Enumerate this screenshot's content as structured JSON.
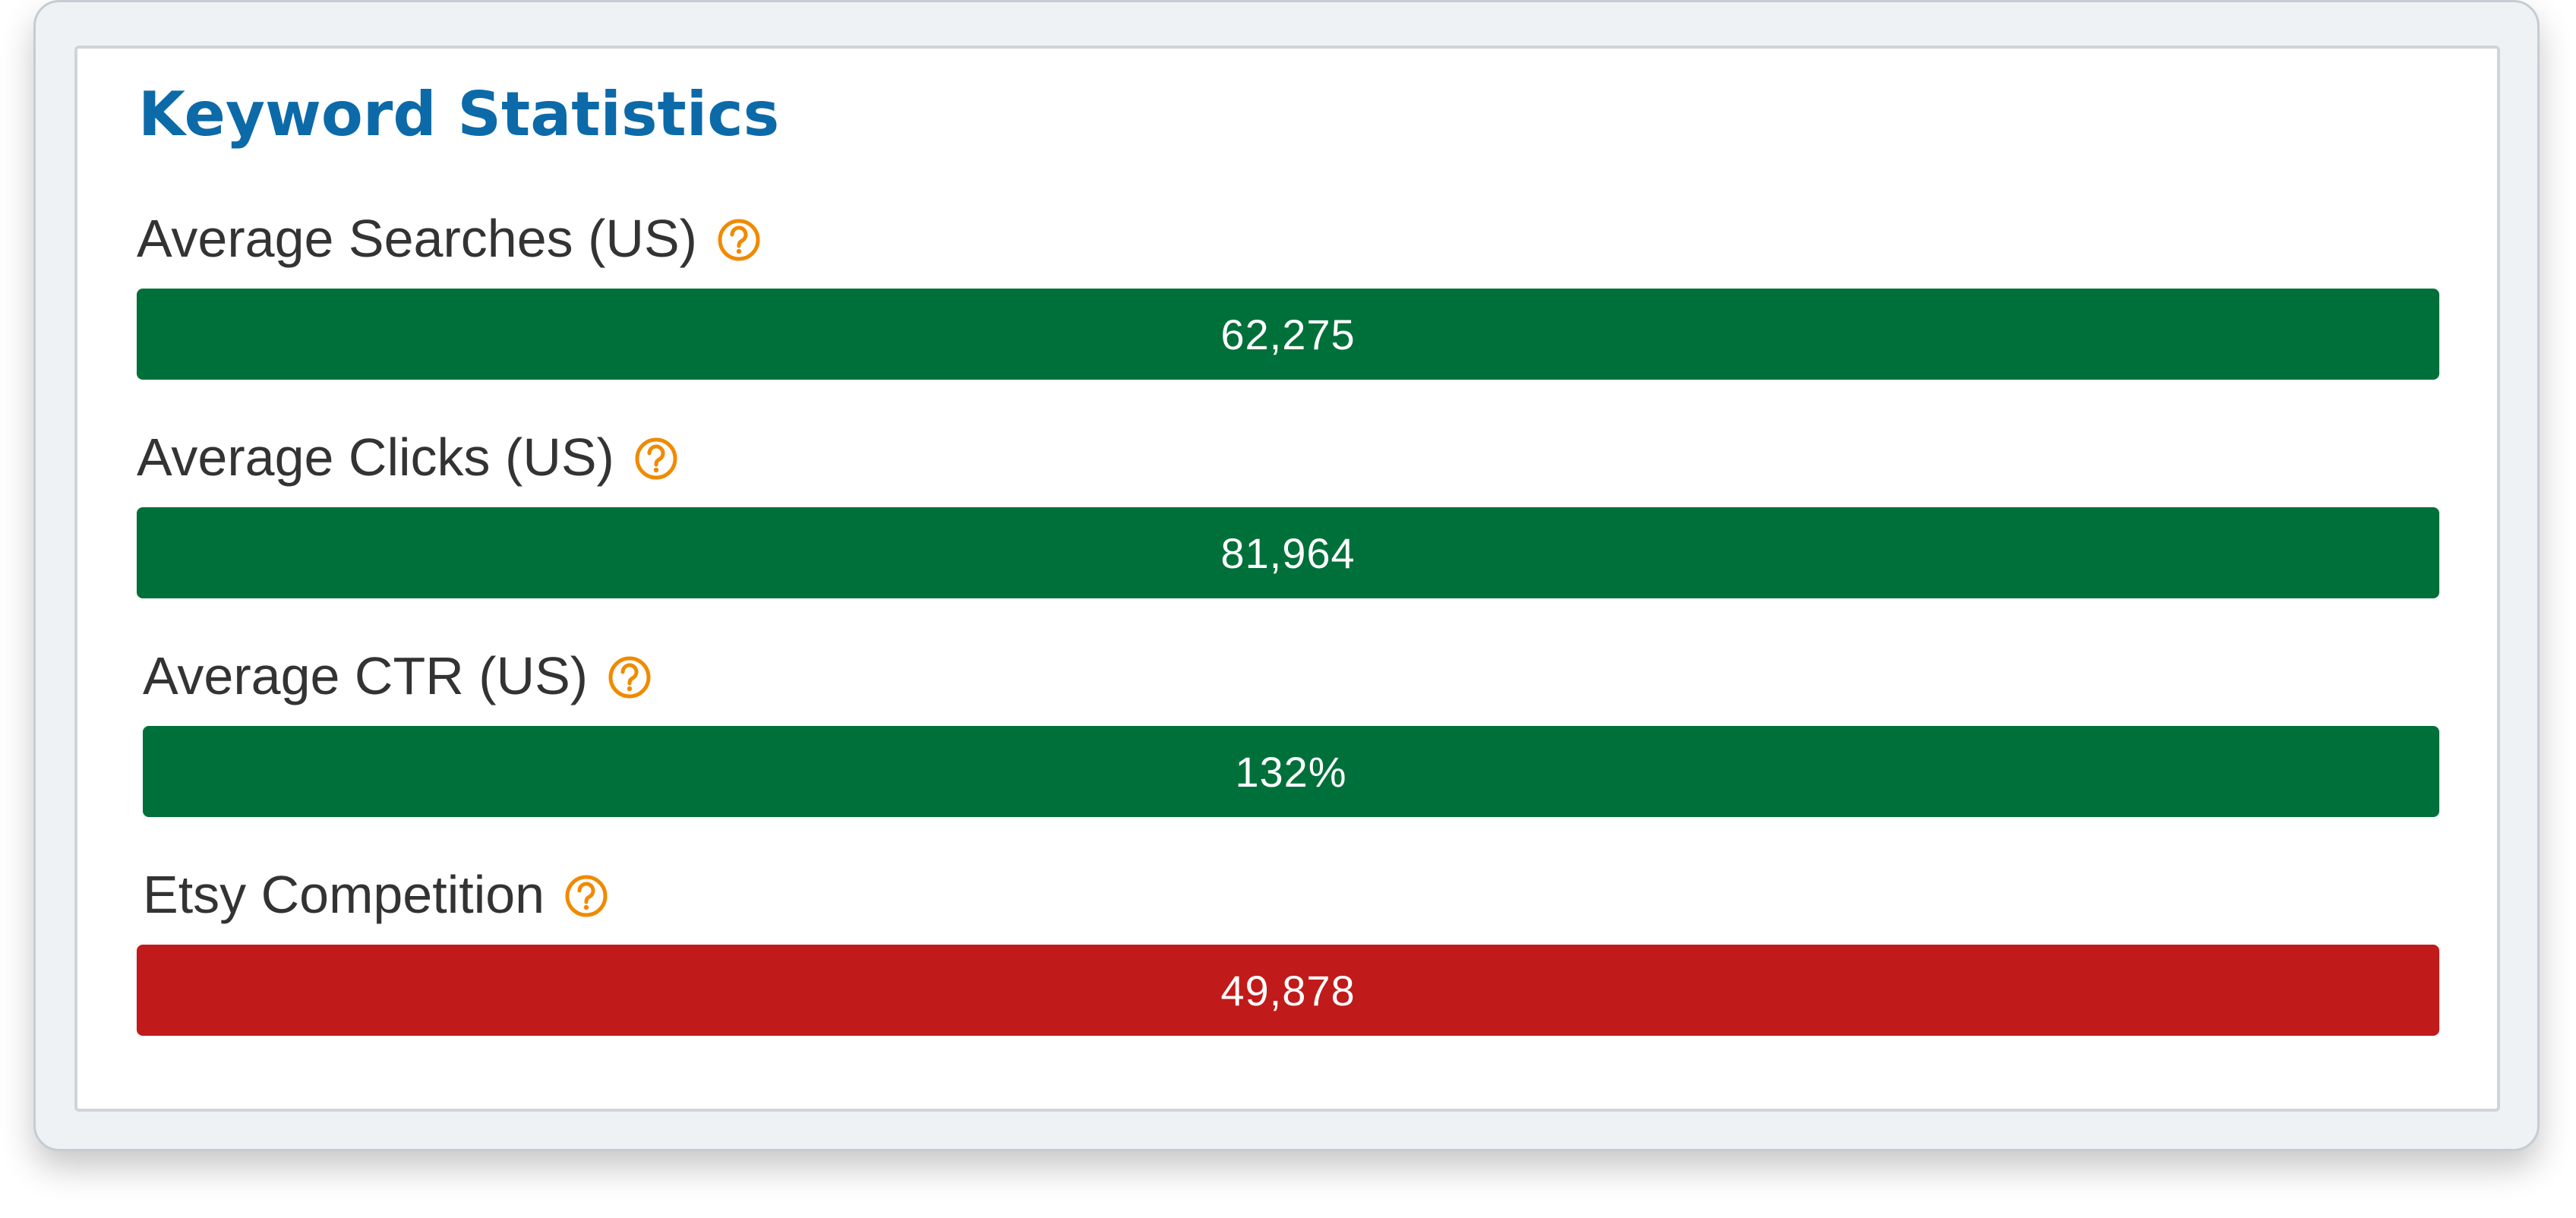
{
  "panel": {
    "title": "Keyword Statistics"
  },
  "stats": [
    {
      "label": "Average Searches (US)",
      "value": "62,275",
      "status": "good",
      "color": "#00703a",
      "icon": "question-circle-icon"
    },
    {
      "label": "Average Clicks (US)",
      "value": "81,964",
      "status": "good",
      "color": "#00703a",
      "icon": "question-circle-icon"
    },
    {
      "label": "Average CTR (US)",
      "value": "132%",
      "status": "good",
      "color": "#00703a",
      "icon": "question-circle-icon"
    },
    {
      "label": "Etsy Competition",
      "value": "49,878",
      "status": "bad",
      "color": "#c11a1a",
      "icon": "question-circle-icon"
    }
  ],
  "colors": {
    "title": "#0c6aa8",
    "help_icon": "#f08a00",
    "good": "#00703a",
    "bad": "#c11a1a"
  }
}
